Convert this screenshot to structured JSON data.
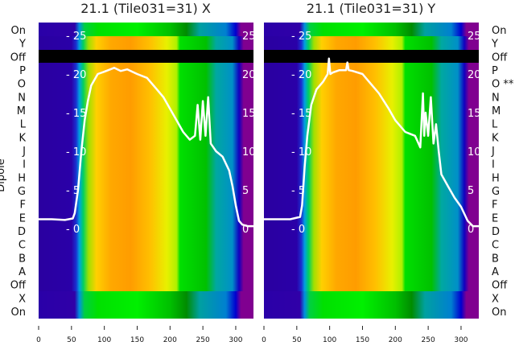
{
  "chart_data": [
    {
      "type": "heatmap",
      "title": "21.1 (Tile031=31) X",
      "ylabel": "Dipole",
      "xlim": [
        0,
        327
      ],
      "xticks": [
        "0",
        "50",
        "100",
        "150",
        "200",
        "250",
        "300"
      ],
      "ylim_inner": [
        -3,
        27
      ],
      "yticks_inner": [
        "0",
        "5",
        "10",
        "15",
        "20",
        "25"
      ],
      "row_labels": [
        "On",
        "Y",
        "Off",
        "P",
        "O",
        "N",
        "M",
        "L",
        "K",
        "J",
        "I",
        "H",
        "G",
        "F",
        "E",
        "D",
        "C",
        "B",
        "A",
        "Off",
        "X",
        "On"
      ],
      "line": {
        "x": [
          0,
          20,
          40,
          52,
          55,
          60,
          65,
          70,
          75,
          80,
          90,
          100,
          115,
          125,
          135,
          150,
          165,
          180,
          190,
          200,
          210,
          220,
          230,
          238,
          242,
          246,
          250,
          254,
          258,
          262,
          266,
          270,
          280,
          290,
          295,
          300,
          305,
          310,
          318,
          327
        ],
        "y": [
          1.2,
          1.2,
          1.1,
          1.3,
          2,
          5,
          10,
          14,
          16.5,
          18.5,
          20,
          20.3,
          20.8,
          20.4,
          20.6,
          20,
          19.5,
          18,
          17,
          15.5,
          14,
          12.5,
          11.5,
          12,
          16,
          11.5,
          16.5,
          12,
          17,
          11,
          10.5,
          10,
          9.3,
          7.5,
          5.5,
          3,
          1,
          0.5,
          0.3,
          0.3
        ]
      }
    },
    {
      "type": "heatmap",
      "title": "21.1 (Tile031=31) Y",
      "xlim": [
        0,
        327
      ],
      "xticks": [
        "0",
        "50",
        "100",
        "150",
        "200",
        "250",
        "300"
      ],
      "ylim_inner": [
        -3,
        27
      ],
      "yticks_inner": [
        "0",
        "5",
        "10",
        "15",
        "20",
        "25"
      ],
      "row_labels": [
        "On",
        "Y",
        "Off",
        "P",
        "O **",
        "N",
        "M",
        "L",
        "K",
        "J",
        "I",
        "H",
        "G",
        "F",
        "E",
        "D",
        "C",
        "B",
        "A",
        "Off",
        "X",
        "On"
      ],
      "line": {
        "x": [
          0,
          20,
          40,
          55,
          58,
          62,
          66,
          72,
          80,
          90,
          97,
          99,
          101,
          105,
          115,
          125,
          127,
          129,
          135,
          150,
          160,
          175,
          190,
          200,
          215,
          230,
          238,
          242,
          244,
          246,
          250,
          254,
          258,
          262,
          266,
          270,
          280,
          290,
          300,
          310,
          318,
          327
        ],
        "y": [
          1.2,
          1.2,
          1.2,
          1.5,
          3,
          8,
          12,
          16,
          18,
          19,
          20,
          22,
          20,
          20.2,
          20.5,
          20.5,
          21.5,
          20.5,
          20.4,
          20,
          19,
          17.5,
          15.5,
          14,
          12.5,
          12,
          10.5,
          17.5,
          12,
          15,
          12,
          17,
          11,
          13.5,
          10,
          7,
          5.5,
          4,
          2.8,
          1,
          0.3,
          0.3
        ]
      }
    }
  ],
  "colors": {
    "line": "#ffffff",
    "masked_band": "#000000",
    "main_stops": [
      [
        "0",
        "#2a00a0"
      ],
      [
        "50",
        "#2a00a8"
      ],
      [
        "57",
        "#1a30d0"
      ],
      [
        "62",
        "#00a0e0"
      ],
      [
        "68",
        "#00d060"
      ],
      [
        "76",
        "#a0e000"
      ],
      [
        "88",
        "#ffd000"
      ],
      [
        "110",
        "#ffa800"
      ],
      [
        "140",
        "#ff9c00"
      ],
      [
        "170",
        "#ffc000"
      ],
      [
        "195",
        "#e8f000"
      ],
      [
        "210",
        "#b0f000"
      ],
      [
        "215",
        "#00e000"
      ],
      [
        "255",
        "#00c000"
      ],
      [
        "270",
        "#00a8a0"
      ],
      [
        "295",
        "#0090c8"
      ],
      [
        "305",
        "#1000c0"
      ],
      [
        "312",
        "#800090"
      ],
      [
        "327",
        "#800090"
      ]
    ],
    "top_stops": [
      [
        "0",
        "#2a00a8"
      ],
      [
        "55",
        "#3000a8"
      ],
      [
        "62",
        "#0090e0"
      ],
      [
        "70",
        "#00d040"
      ],
      [
        "90",
        "#00e000"
      ],
      [
        "150",
        "#00f000"
      ],
      [
        "200",
        "#00c000"
      ],
      [
        "225",
        "#008c00"
      ],
      [
        "245",
        "#00a0a0"
      ],
      [
        "285",
        "#0080d0"
      ],
      [
        "300",
        "#0000d0"
      ],
      [
        "308",
        "#800090"
      ],
      [
        "327",
        "#800090"
      ]
    ]
  }
}
